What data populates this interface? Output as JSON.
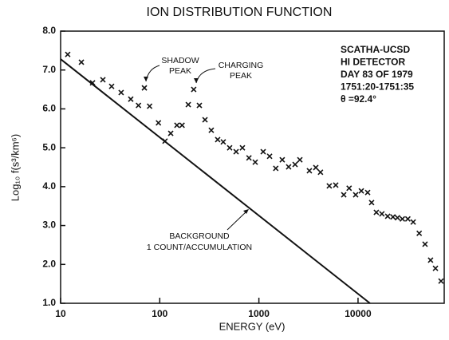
{
  "chart_data": {
    "type": "scatter",
    "title": "ION DISTRIBUTION FUNCTION",
    "xlabel": "ENERGY (eV)",
    "ylabel": "Log₁₀ f(s³/km⁶)",
    "xscale": "log",
    "xlim": [
      10,
      74000
    ],
    "ylim": [
      1,
      8
    ],
    "xticks": [
      10,
      100,
      1000,
      10000
    ],
    "yticks": [
      {
        "value": 1,
        "label": "1.0"
      },
      {
        "value": 2,
        "label": "2.0"
      },
      {
        "value": 3,
        "label": "3.0"
      },
      {
        "value": 4,
        "label": "4.0"
      },
      {
        "value": 5,
        "label": "5.0"
      },
      {
        "value": 6,
        "label": "6.0"
      },
      {
        "value": 7,
        "label": "7.0"
      },
      {
        "value": 8,
        "label": "8.0"
      }
    ],
    "color": "#111111",
    "x": [
      11.8,
      16.2,
      21,
      26.7,
      32.7,
      40.8,
      51,
      61,
      70,
      79,
      97,
      113,
      129,
      149,
      168,
      194,
      220,
      251,
      286,
      331,
      384,
      437,
      507,
      589,
      682,
      794,
      918,
      1105,
      1282,
      1480,
      1720,
      1995,
      2317,
      2590,
      3230,
      3750,
      4180,
      5130,
      5960,
      7180,
      8130,
      9460,
      10790,
      12500,
      13700,
      15300,
      17400,
      19900,
      22500,
      25000,
      28000,
      31800,
      36000,
      41400,
      47400,
      53900,
      60400,
      68700
    ],
    "values": [
      7.4,
      7.2,
      6.67,
      6.75,
      6.58,
      6.42,
      6.25,
      6.09,
      6.54,
      6.07,
      5.64,
      5.17,
      5.37,
      5.58,
      5.58,
      6.11,
      6.5,
      6.09,
      5.72,
      5.45,
      5.21,
      5.15,
      5.0,
      4.9,
      5.0,
      4.74,
      4.63,
      4.9,
      4.78,
      4.47,
      4.69,
      4.51,
      4.57,
      4.69,
      4.41,
      4.49,
      4.37,
      4.02,
      4.04,
      3.79,
      3.96,
      3.79,
      3.89,
      3.85,
      3.59,
      3.34,
      3.3,
      3.24,
      3.22,
      3.2,
      3.17,
      3.17,
      3.09,
      2.8,
      2.52,
      2.11,
      1.9,
      1.57
    ],
    "background_line": {
      "x": [
        10,
        13200
      ],
      "values": [
        7.28,
        1.0
      ]
    },
    "annotations": {
      "shadow": [
        "SHADOW",
        "PEAK"
      ],
      "charging": [
        "CHARGING",
        "PEAK"
      ],
      "background": [
        "BACKGROUND",
        "1  COUNT/ACCUMULATION"
      ]
    },
    "info": [
      "SCATHA-UCSD",
      "HI  DETECTOR",
      "DAY 83 OF 1979",
      "1751:20-1751:35",
      "θ =92.4°"
    ]
  }
}
